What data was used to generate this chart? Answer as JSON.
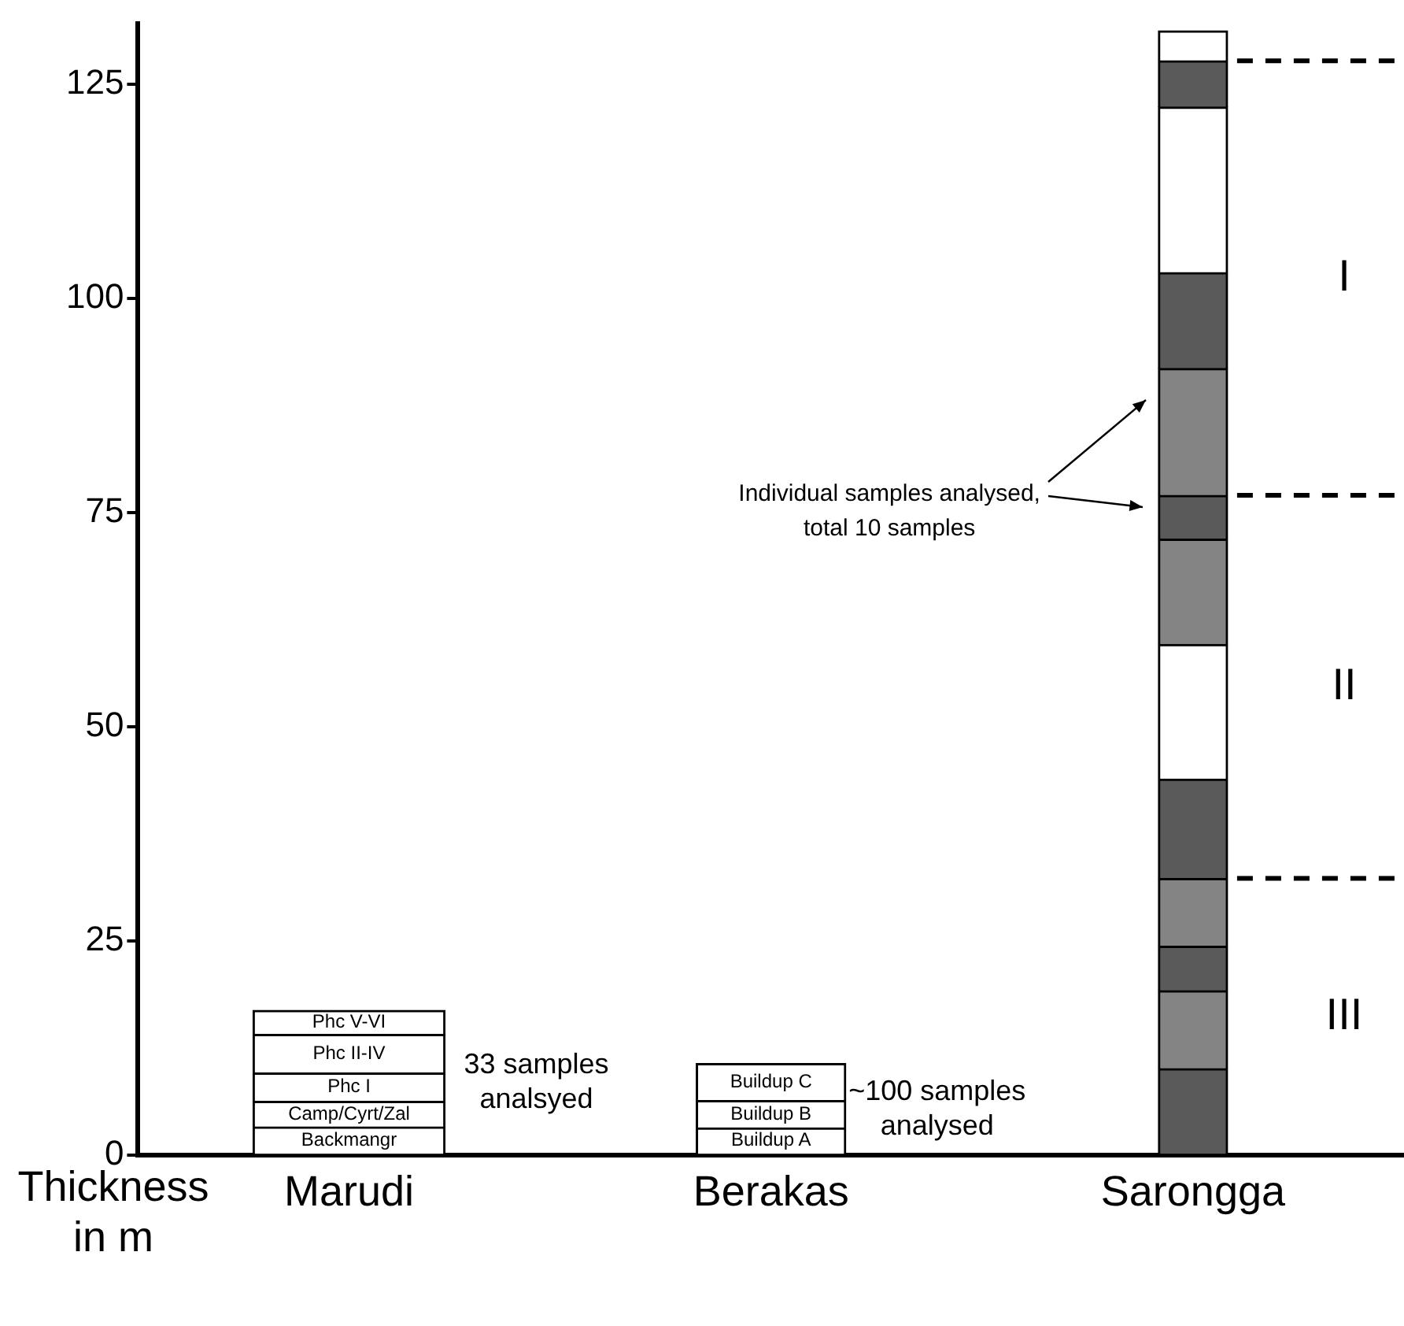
{
  "chart_data": {
    "type": "bar",
    "stacked": true,
    "ylabel": "Thickness in m",
    "categories": [
      "Marudi",
      "Berakas",
      "Sarongga"
    ],
    "ylim": [
      0,
      132
    ],
    "yticks": [
      0,
      25,
      50,
      75,
      100,
      125
    ],
    "grid": false,
    "legend": false,
    "series": [
      {
        "colors": [
          "#ffffff",
          "#ffffff",
          "#5a5a5a"
        ],
        "values": [
          3.3,
          3.2,
          10.1
        ],
        "value_labels": [
          "Backmangr",
          "Buildup A",
          null
        ]
      },
      {
        "colors": [
          "#ffffff",
          "#ffffff",
          "#848484"
        ],
        "values": [
          3.0,
          3.2,
          9.1
        ],
        "value_labels": [
          "Camp/Cyrt/Zal",
          "Buildup B",
          null
        ]
      },
      {
        "colors": [
          "#ffffff",
          "#ffffff",
          "#5a5a5a"
        ],
        "values": [
          3.3,
          4.3,
          5.2
        ],
        "value_labels": [
          "Phc I",
          "Buildup C",
          null
        ]
      },
      {
        "colors": [
          "#ffffff",
          "#ffffff",
          "#848484"
        ],
        "values": [
          4.5,
          null,
          7.9
        ],
        "value_labels": [
          "Phc II-IV",
          null,
          null
        ]
      },
      {
        "colors": [
          "#ffffff",
          "#ffffff",
          "#5a5a5a"
        ],
        "values": [
          2.8,
          null,
          11.6
        ],
        "value_labels": [
          "Phc V-VI",
          null,
          null
        ]
      },
      {
        "colors": [
          "#ffffff",
          "#ffffff",
          "#ffffff"
        ],
        "values": [
          null,
          null,
          15.7
        ]
      },
      {
        "colors": [
          "#ffffff",
          "#ffffff",
          "#848484"
        ],
        "values": [
          null,
          null,
          12.3
        ]
      },
      {
        "colors": [
          "#ffffff",
          "#ffffff",
          "#5a5a5a"
        ],
        "values": [
          null,
          null,
          5.1
        ]
      },
      {
        "colors": [
          "#ffffff",
          "#ffffff",
          "#848484"
        ],
        "values": [
          null,
          null,
          14.8
        ]
      },
      {
        "colors": [
          "#ffffff",
          "#ffffff",
          "#5a5a5a"
        ],
        "values": [
          null,
          null,
          11.2
        ]
      },
      {
        "colors": [
          "#ffffff",
          "#ffffff",
          "#ffffff"
        ],
        "values": [
          null,
          null,
          19.3
        ]
      },
      {
        "colors": [
          "#ffffff",
          "#ffffff",
          "#5a5a5a"
        ],
        "values": [
          null,
          null,
          5.4
        ]
      },
      {
        "colors": [
          "#ffffff",
          "#ffffff",
          "#ffffff"
        ],
        "values": [
          null,
          null,
          3.5
        ]
      }
    ],
    "ref_lines": [
      {
        "axis": "y",
        "value": 127.7,
        "line_style": "dashed",
        "color": "#000000"
      },
      {
        "axis": "y",
        "value": 77,
        "line_style": "dashed",
        "color": "#000000"
      },
      {
        "axis": "y",
        "value": 32.3,
        "line_style": "dashed",
        "color": "#000000"
      }
    ],
    "annotations": [
      "33 samples analsyed",
      "~100 samples analysed",
      "Individual samples analysed, total 10 samples",
      "I",
      "II",
      "III"
    ]
  }
}
